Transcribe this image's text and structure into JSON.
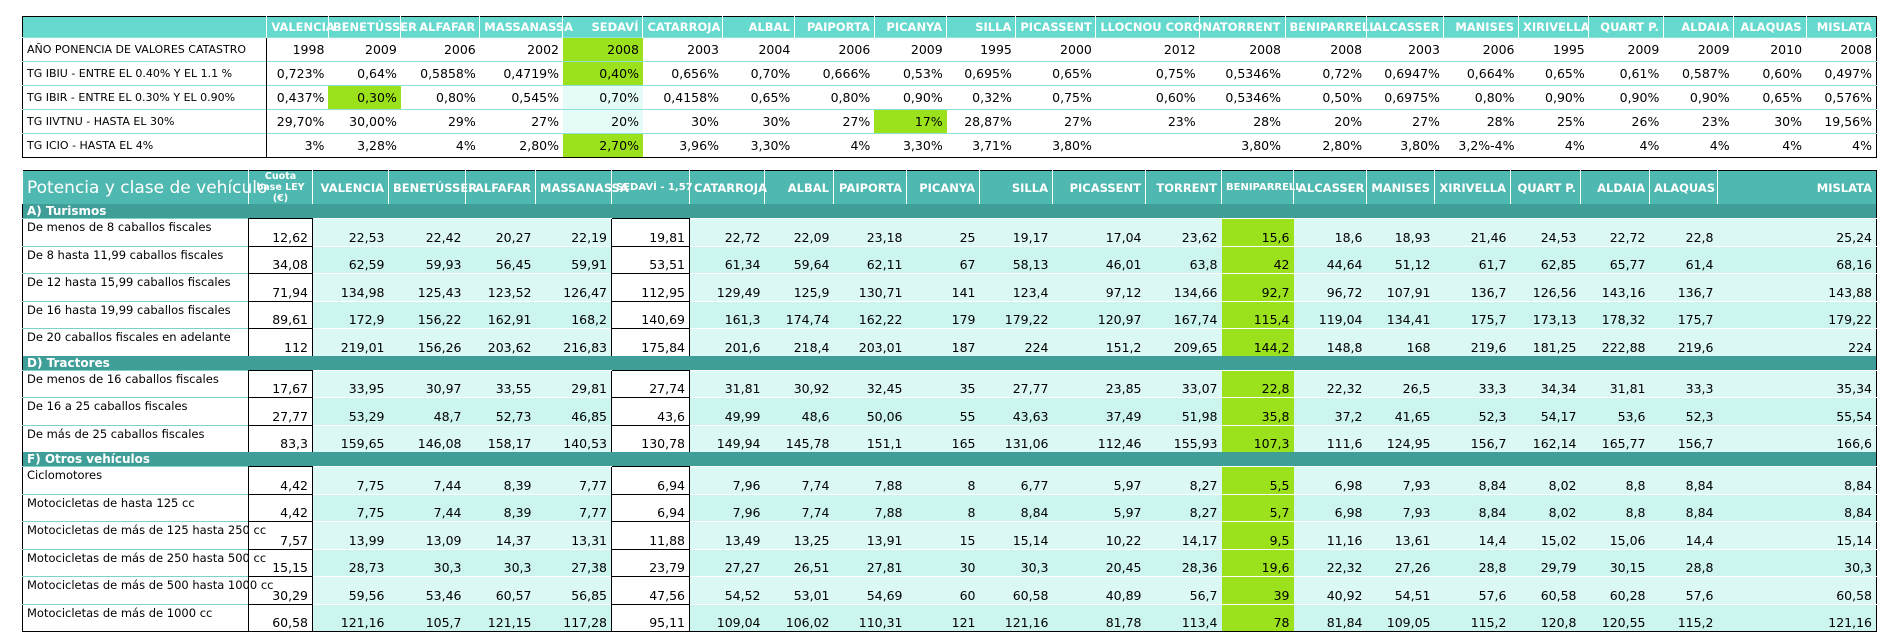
{
  "top_table": {
    "columns": [
      "VALENCIA",
      "BENETÚSSER",
      "ALFAFAR",
      "MASSANASSA",
      "SEDAVÍ",
      "CATARROJA",
      "ALBAL",
      "PAIPORTA",
      "PICANYA",
      "SILLA",
      "PICASSENT",
      "LLOCNOU CORONA",
      "TORRENT",
      "BENIPARRELL",
      "ALCASSER",
      "MANISES",
      "XIRIVELLA",
      "QUART P.",
      "ALDAIA",
      "ALAQUAS",
      "MISLATA"
    ],
    "rows": [
      {
        "label": "AÑO PONENCIA DE VALORES CATASTRO",
        "values": [
          "1998",
          "2009",
          "2006",
          "2002",
          "2008",
          "2003",
          "2004",
          "2006",
          "2009",
          "1995",
          "2000",
          "2012",
          "2008",
          "2008",
          "2003",
          "2006",
          "1995",
          "2009",
          "2009",
          "2010",
          "2008"
        ],
        "highlight": [
          4
        ]
      },
      {
        "label": "TG IBIU - ENTRE EL 0.40% Y EL 1.1 %",
        "values": [
          "0,723%",
          "0,64%",
          "0,5858%",
          "0,4719%",
          "0,40%",
          "0,656%",
          "0,70%",
          "0,666%",
          "0,53%",
          "0,695%",
          "0,65%",
          "0,75%",
          "0,5346%",
          "0,72%",
          "0,6947%",
          "0,664%",
          "0,65%",
          "0,61%",
          "0,587%",
          "0,60%",
          "0,497%"
        ],
        "highlight": [
          4
        ]
      },
      {
        "label": "TG IBIR - ENTRE EL 0.30% Y EL 0.90%",
        "values": [
          "0,437%",
          "0,30%",
          "0,80%",
          "0,545%",
          "0,70%",
          "0,4158%",
          "0,65%",
          "0,80%",
          "0,90%",
          "0,32%",
          "0,75%",
          "0,60%",
          "0,5346%",
          "0,50%",
          "0,6975%",
          "0,80%",
          "0,90%",
          "0,90%",
          "0,90%",
          "0,65%",
          "0,576%"
        ],
        "highlight": [
          1
        ]
      },
      {
        "label": "TG IIVTNU - HASTA EL 30%",
        "values": [
          "29,70%",
          "30,00%",
          "29%",
          "27%",
          "20%",
          "30%",
          "30%",
          "27%",
          "17%",
          "28,87%",
          "27%",
          "23%",
          "28%",
          "20%",
          "27%",
          "28%",
          "25%",
          "26%",
          "23%",
          "30%",
          "19,56%"
        ],
        "highlight": [
          8
        ]
      },
      {
        "label": "TG ICIO - HASTA EL 4%",
        "values": [
          "3%",
          "3,28%",
          "4%",
          "2,80%",
          "2,70%",
          "3,96%",
          "3,30%",
          "4%",
          "3,30%",
          "3,71%",
          "3,80%",
          "",
          "3,80%",
          "2,80%",
          "3,80%",
          "3,2%-4%",
          "4%",
          "4%",
          "4%",
          "4%",
          "4%"
        ],
        "highlight": [
          4
        ]
      }
    ]
  },
  "vehicle_table": {
    "title": "Potencia y clase de vehículo",
    "base_header": "Cuota base LEY (€)",
    "columns": [
      "VALENCIA",
      "BENETÚSSER",
      "ALFAFAR",
      "MASSANASSA",
      "SEDAVÍ - 1,57",
      "CATARROJA",
      "ALBAL",
      "PAIPORTA",
      "PICANYA",
      "SILLA",
      "PICASSENT",
      "TORRENT",
      "BENIPARRELL",
      "ALCASSER",
      "MANISES",
      "XIRIVELLA",
      "QUART P.",
      "ALDAIA",
      "ALAQUAS",
      "MISLATA"
    ],
    "highlight_col": 12,
    "sections": [
      {
        "title": "A)   Turismos",
        "rows": [
          {
            "label": "De menos de 8 caballos fiscales",
            "base": "12,62",
            "values": [
              "22,53",
              "22,42",
              "20,27",
              "22,19",
              "19,81",
              "22,72",
              "22,09",
              "23,18",
              "25",
              "19,17",
              "17,04",
              "23,62",
              "15,6",
              "18,6",
              "18,93",
              "21,46",
              "24,53",
              "22,72",
              "22,8",
              "25,24"
            ]
          },
          {
            "label": "De 8 hasta 11,99 caballos fiscales",
            "base": "34,08",
            "values": [
              "62,59",
              "59,93",
              "56,45",
              "59,91",
              "53,51",
              "61,34",
              "59,64",
              "62,11",
              "67",
              "58,13",
              "46,01",
              "63,8",
              "42",
              "44,64",
              "51,12",
              "61,7",
              "62,85",
              "65,77",
              "61,4",
              "68,16"
            ]
          },
          {
            "label": "De 12 hasta 15,99 caballos fiscales",
            "base": "71,94",
            "values": [
              "134,98",
              "125,43",
              "123,52",
              "126,47",
              "112,95",
              "129,49",
              "125,9",
              "130,71",
              "141",
              "123,4",
              "97,12",
              "134,66",
              "92,7",
              "96,72",
              "107,91",
              "136,7",
              "126,56",
              "143,16",
              "136,7",
              "143,88"
            ]
          },
          {
            "label": "De 16 hasta 19,99 caballos fiscales",
            "base": "89,61",
            "values": [
              "172,9",
              "156,22",
              "162,91",
              "168,2",
              "140,69",
              "161,3",
              "174,74",
              "162,22",
              "179",
              "179,22",
              "120,97",
              "167,74",
              "115,4",
              "119,04",
              "134,41",
              "175,7",
              "173,13",
              "178,32",
              "175,7",
              "179,22"
            ]
          },
          {
            "label": "De 20 caballos fiscales en adelante",
            "base": "112",
            "values": [
              "219,01",
              "156,26",
              "203,62",
              "216,83",
              "175,84",
              "201,6",
              "218,4",
              "203,01",
              "187",
              "224",
              "151,2",
              "209,65",
              "144,2",
              "148,8",
              "168",
              "219,6",
              "181,25",
              "222,88",
              "219,6",
              "224"
            ]
          }
        ]
      },
      {
        "title": "D)   Tractores",
        "rows": [
          {
            "label": "De menos de 16 caballos fiscales",
            "base": "17,67",
            "values": [
              "33,95",
              "30,97",
              "33,55",
              "29,81",
              "27,74",
              "31,81",
              "30,92",
              "32,45",
              "35",
              "27,77",
              "23,85",
              "33,07",
              "22,8",
              "22,32",
              "26,5",
              "33,3",
              "34,34",
              "31,81",
              "33,3",
              "35,34"
            ]
          },
          {
            "label": "De 16 a 25 caballos fiscales",
            "base": "27,77",
            "values": [
              "53,29",
              "48,7",
              "52,73",
              "46,85",
              "43,6",
              "49,99",
              "48,6",
              "50,06",
              "55",
              "43,63",
              "37,49",
              "51,98",
              "35,8",
              "37,2",
              "41,65",
              "52,3",
              "54,17",
              "53,6",
              "52,3",
              "55,54"
            ]
          },
          {
            "label": "De más de 25 caballos fiscales",
            "base": "83,3",
            "values": [
              "159,65",
              "146,08",
              "158,17",
              "140,53",
              "130,78",
              "149,94",
              "145,78",
              "151,1",
              "165",
              "131,06",
              "112,46",
              "155,93",
              "107,3",
              "111,6",
              "124,95",
              "156,7",
              "162,14",
              "165,77",
              "156,7",
              "166,6"
            ]
          }
        ]
      },
      {
        "title": "F)   Otros vehículos",
        "rows": [
          {
            "label": "Ciclomotores",
            "base": "4,42",
            "values": [
              "7,75",
              "7,44",
              "8,39",
              "7,77",
              "6,94",
              "7,96",
              "7,74",
              "7,88",
              "8",
              "6,77",
              "5,97",
              "8,27",
              "5,5",
              "6,98",
              "7,93",
              "8,84",
              "8,02",
              "8,8",
              "8,84",
              "8,84"
            ]
          },
          {
            "label": "Motocicletas de hasta 125 cc",
            "base": "4,42",
            "values": [
              "7,75",
              "7,44",
              "8,39",
              "7,77",
              "6,94",
              "7,96",
              "7,74",
              "7,88",
              "8",
              "8,84",
              "5,97",
              "8,27",
              "5,7",
              "6,98",
              "7,93",
              "8,84",
              "8,02",
              "8,8",
              "8,84",
              "8,84"
            ]
          },
          {
            "label": "Motocicletas de más de 125 hasta 250 cc",
            "base": "7,57",
            "values": [
              "13,99",
              "13,09",
              "14,37",
              "13,31",
              "11,88",
              "13,49",
              "13,25",
              "13,91",
              "15",
              "15,14",
              "10,22",
              "14,17",
              "9,5",
              "11,16",
              "13,61",
              "14,4",
              "15,02",
              "15,06",
              "14,4",
              "15,14"
            ]
          },
          {
            "label": "Motocicletas de más de 250 hasta 500 cc",
            "base": "15,15",
            "values": [
              "28,73",
              "30,3",
              "30,3",
              "27,38",
              "23,79",
              "27,27",
              "26,51",
              "27,81",
              "30",
              "30,3",
              "20,45",
              "28,36",
              "19,6",
              "22,32",
              "27,26",
              "28,8",
              "29,79",
              "30,15",
              "28,8",
              "30,3"
            ]
          },
          {
            "label": "Motocicletas de más de 500 hasta 1000 cc",
            "base": "30,29",
            "values": [
              "59,56",
              "53,46",
              "60,57",
              "56,85",
              "47,56",
              "54,52",
              "53,01",
              "54,69",
              "60",
              "60,58",
              "40,89",
              "56,7",
              "39",
              "40,92",
              "54,51",
              "57,6",
              "60,58",
              "60,28",
              "57,6",
              "60,58"
            ]
          },
          {
            "label": "Motocicletas de más de 1000 cc",
            "base": "60,58",
            "values": [
              "121,16",
              "105,7",
              "121,15",
              "117,28",
              "95,11",
              "109,04",
              "106,02",
              "110,31",
              "121",
              "121,16",
              "81,78",
              "113,4",
              "78",
              "81,84",
              "109,05",
              "115,2",
              "120,8",
              "120,55",
              "115,2",
              "121,16"
            ]
          }
        ]
      }
    ]
  }
}
